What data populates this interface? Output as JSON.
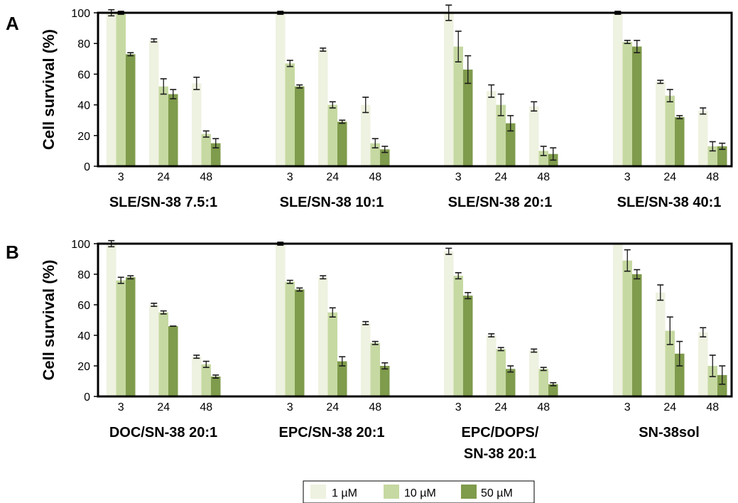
{
  "chart_data": {
    "type": "bar",
    "legend": {
      "placement": "bottom-center",
      "entries": [
        "1 µM",
        "10 µM",
        "50 µM"
      ]
    },
    "colors": [
      "#eef2e0",
      "#c6d9a2",
      "#7f9b4c"
    ],
    "error_color": "#1a1a1a",
    "panels": [
      {
        "letter": "A",
        "ylabel": "Cell survival (%)",
        "ylim": [
          0,
          100
        ],
        "yticks": [
          "0",
          "20",
          "40",
          "60",
          "80",
          "100"
        ],
        "xticks": [
          "3",
          "24",
          "48"
        ],
        "groups": [
          {
            "name_lines": [
              "SLE/SN-38 7.5:1"
            ],
            "values": [
              [
                100,
                100,
                73
              ],
              [
                82,
                52,
                47
              ],
              [
                54,
                21,
                15
              ]
            ],
            "errors": [
              [
                2,
                1,
                1
              ],
              [
                1,
                5,
                3
              ],
              [
                4,
                2,
                3
              ]
            ]
          },
          {
            "name_lines": [
              "SLE/SN-38 10:1"
            ],
            "values": [
              [
                100,
                67,
                52
              ],
              [
                76,
                40,
                29
              ],
              [
                40,
                15,
                11
              ]
            ],
            "errors": [
              [
                1,
                2,
                1
              ],
              [
                1,
                2,
                1
              ],
              [
                5,
                3,
                2
              ]
            ]
          },
          {
            "name_lines": [
              "SLE/SN-38 20:1"
            ],
            "values": [
              [
                100,
                78,
                63
              ],
              [
                49,
                40,
                28
              ],
              [
                39,
                10,
                8
              ]
            ],
            "errors": [
              [
                5,
                10,
                9
              ],
              [
                4,
                7,
                5
              ],
              [
                3,
                3,
                4
              ]
            ]
          },
          {
            "name_lines": [
              "SLE/SN-38 40:1"
            ],
            "values": [
              [
                100,
                81,
                78
              ],
              [
                55,
                46,
                32
              ],
              [
                36,
                13,
                13
              ]
            ],
            "errors": [
              [
                1,
                1,
                4
              ],
              [
                1,
                4,
                1
              ],
              [
                2,
                3,
                2
              ]
            ]
          }
        ]
      },
      {
        "letter": "B",
        "ylabel": "Cell survival (%)",
        "ylim": [
          0,
          100
        ],
        "yticks": [
          "0",
          "20",
          "40",
          "60",
          "80",
          "100"
        ],
        "xticks": [
          "3",
          "24",
          "48"
        ],
        "groups": [
          {
            "name_lines": [
              "DOC/SN-38 20:1"
            ],
            "values": [
              [
                100,
                76,
                78
              ],
              [
                60,
                55,
                46
              ],
              [
                26,
                21,
                13
              ]
            ],
            "errors": [
              [
                2,
                2,
                1
              ],
              [
                1,
                1,
                0
              ],
              [
                1,
                2,
                1
              ]
            ]
          },
          {
            "name_lines": [
              "EPC/SN-38 20:1"
            ],
            "values": [
              [
                100,
                75,
                70
              ],
              [
                78,
                55,
                23
              ],
              [
                48,
                35,
                20
              ]
            ],
            "errors": [
              [
                1,
                1,
                1
              ],
              [
                1,
                3,
                3
              ],
              [
                1,
                1,
                2
              ]
            ]
          },
          {
            "name_lines": [
              "EPC/DOPS/",
              "SN-38 20:1"
            ],
            "values": [
              [
                95,
                79,
                66
              ],
              [
                40,
                31,
                18
              ],
              [
                30,
                18,
                8
              ]
            ],
            "errors": [
              [
                2,
                2,
                2
              ],
              [
                1,
                1,
                2
              ],
              [
                1,
                1,
                1
              ]
            ]
          },
          {
            "name_lines": [
              "SN-38sol"
            ],
            "values": [
              [
                100,
                89,
                80
              ],
              [
                68,
                43,
                28
              ],
              [
                42,
                20,
                14
              ]
            ],
            "errors": [
              [
                0,
                7,
                3
              ],
              [
                5,
                9,
                8
              ],
              [
                3,
                7,
                6
              ]
            ]
          }
        ]
      }
    ]
  }
}
